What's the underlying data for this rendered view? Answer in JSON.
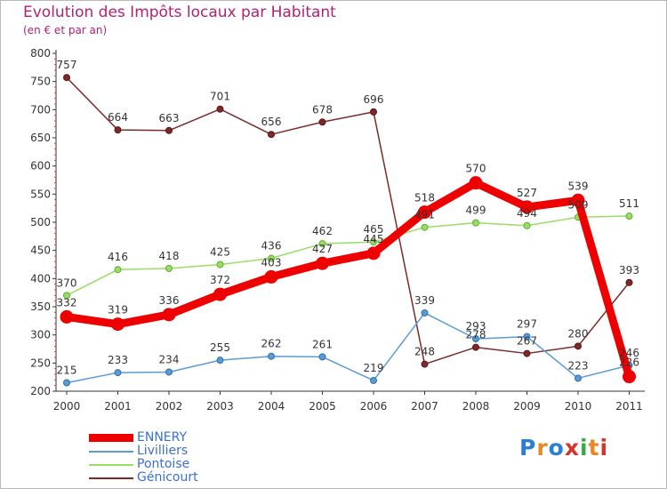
{
  "chart_data": {
    "type": "line",
    "title": "Evolution des Impôts locaux par Habitant",
    "subtitle": "(en € et par an)",
    "xlabel": "",
    "ylabel": "",
    "x": [
      "2000",
      "2001",
      "2002",
      "2003",
      "2004",
      "2005",
      "2006",
      "2007",
      "2008",
      "2009",
      "2010",
      "2011"
    ],
    "ylim": [
      200,
      800
    ],
    "yticks": [
      200,
      250,
      300,
      350,
      400,
      450,
      500,
      550,
      600,
      650,
      700,
      750,
      800
    ],
    "grid": false,
    "legend_position": "bottom-left",
    "series": [
      {
        "name": "ENNERY",
        "color": "#ee0000",
        "values": [
          332,
          319,
          336,
          372,
          403,
          427,
          445,
          518,
          570,
          527,
          539,
          226
        ],
        "labels": [
          "332",
          "319",
          "336",
          "372",
          "403",
          "427",
          "445",
          "518",
          "570",
          "527",
          "539",
          "226"
        ]
      },
      {
        "name": "Livilliers",
        "color": "#5b9bd5",
        "values": [
          215,
          233,
          234,
          255,
          262,
          261,
          219,
          339,
          293,
          297,
          223,
          246
        ],
        "labels": [
          "215",
          "233",
          "234",
          "255",
          "262",
          "261",
          "219",
          "339",
          "293",
          "297",
          "223",
          "246"
        ]
      },
      {
        "name": "Pontoise",
        "color": "#99dd66",
        "values": [
          370,
          416,
          418,
          425,
          436,
          462,
          465,
          491,
          499,
          494,
          509,
          511
        ],
        "labels": [
          "370",
          "416",
          "418",
          "425",
          "436",
          "462",
          "465",
          "491",
          "499",
          "494",
          "509",
          "511"
        ]
      },
      {
        "name": "Génicourt",
        "color": "#7b2a2a",
        "values": [
          757,
          664,
          663,
          701,
          656,
          678,
          696,
          248,
          278,
          267,
          280,
          393
        ],
        "labels": [
          "757",
          "664",
          "663",
          "701",
          "656",
          "678",
          "696",
          "248",
          "278",
          "267",
          "280",
          "393"
        ]
      }
    ]
  },
  "logo": {
    "letters": [
      "P",
      "r",
      "o",
      "x",
      "i",
      "t",
      "i"
    ],
    "colors": [
      "#2a7fd4",
      "#e8872a",
      "#2a7fd4",
      "#d4342a",
      "#3aa84a",
      "#e8872a",
      "#d4342a"
    ]
  }
}
